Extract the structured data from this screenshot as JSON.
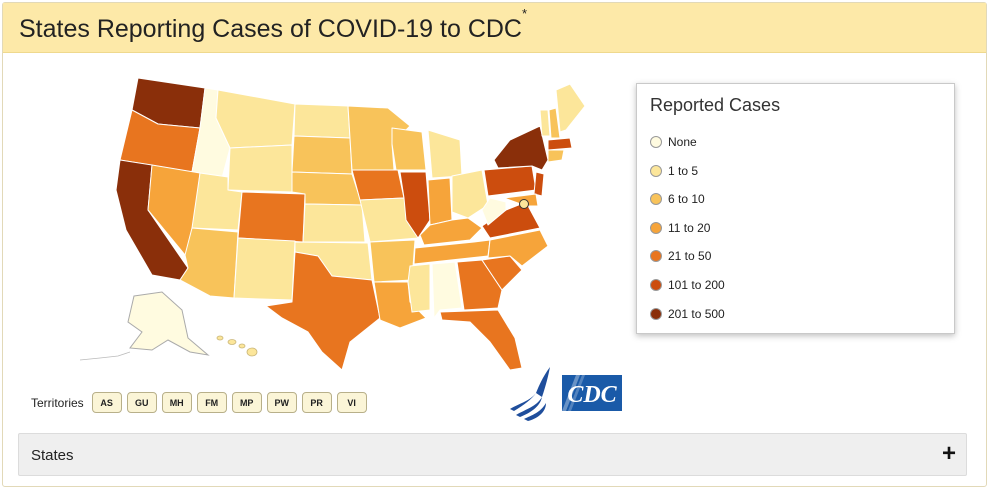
{
  "title": "States Reporting Cases of COVID-19 to CDC",
  "title_marker": "*",
  "colors": {
    "none": "#fffbe0",
    "1_5": "#fce69a",
    "6_10": "#f8c35a",
    "11_20": "#f6a43a",
    "21_50": "#e8751f",
    "101_200": "#cc4d0e",
    "201_500": "#8a2f0a"
  },
  "legend": {
    "title": "Reported Cases",
    "items": [
      {
        "label": "None",
        "color": "#fffbe0"
      },
      {
        "label": "1 to 5",
        "color": "#fce69a"
      },
      {
        "label": "6 to 10",
        "color": "#f8c35a"
      },
      {
        "label": "11 to 20",
        "color": "#f6a43a"
      },
      {
        "label": "21 to 50",
        "color": "#e8751f"
      },
      {
        "label": "101 to 200",
        "color": "#cc4d0e"
      },
      {
        "label": "201 to 500",
        "color": "#8a2f0a"
      }
    ]
  },
  "territories": {
    "label": "Territories",
    "buttons": [
      "AS",
      "GU",
      "MH",
      "FM",
      "MP",
      "PW",
      "PR",
      "VI"
    ]
  },
  "states_section": {
    "label": "States",
    "expand_icon": "+"
  },
  "logos": [
    "hhs-eagle-icon",
    "cdc-logo"
  ]
}
